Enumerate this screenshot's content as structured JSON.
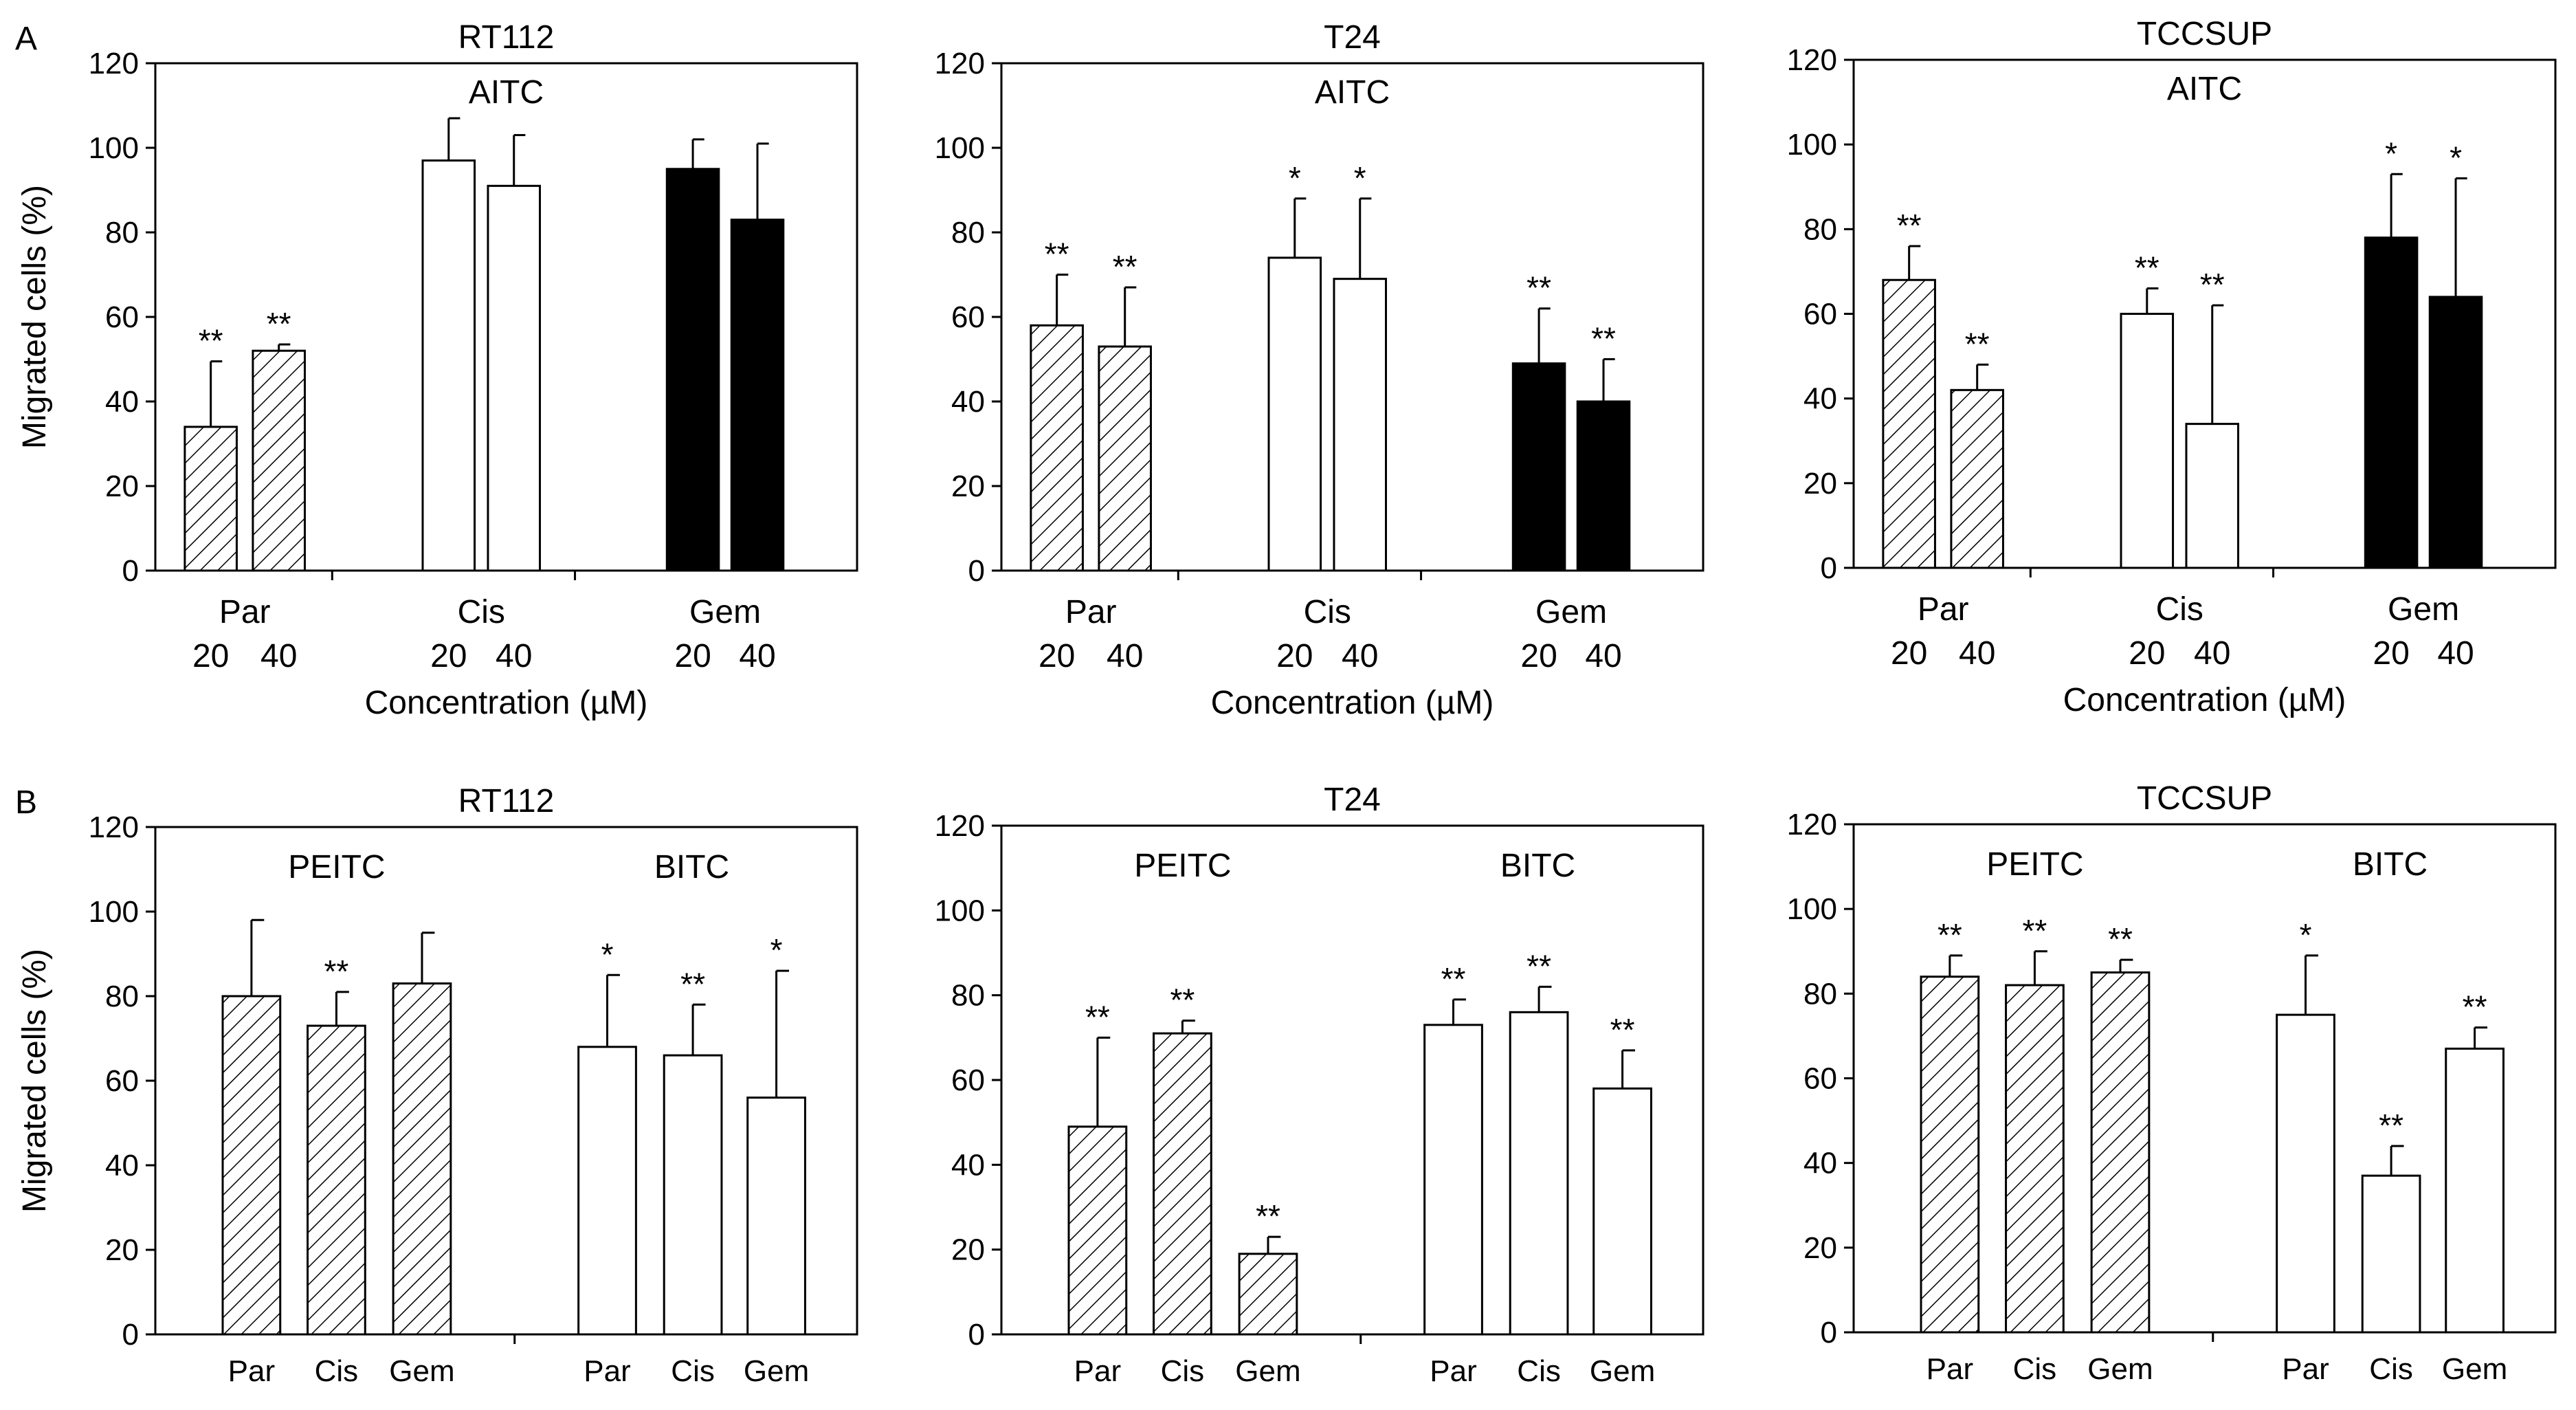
{
  "figure": {
    "panel_labels": [
      "A",
      "B"
    ]
  },
  "colors": {
    "hatched": "#ffffff",
    "open": "#ffffff",
    "solid": "#000000",
    "stroke": "#000000"
  },
  "chart_data": [
    {
      "type": "bar",
      "id": "A-RT112",
      "panel_label": "A",
      "title": "RT112",
      "group_label": "AITC",
      "ylabel": "Migrated cells (%)",
      "xlabel": "Concentration (µM)",
      "yticks": [
        0,
        20,
        40,
        60,
        80,
        100,
        120
      ],
      "ylim": [
        0,
        120
      ],
      "groups": [
        {
          "name": "Par",
          "style": "hatched",
          "bars": [
            {
              "sub": "20",
              "value": 34,
              "err": 15.5,
              "sig": "**"
            },
            {
              "sub": "40",
              "value": 52,
              "err": 1.5,
              "sig": "**"
            }
          ]
        },
        {
          "name": "Cis",
          "style": "open",
          "bars": [
            {
              "sub": "20",
              "value": 97,
              "err": 10,
              "sig": ""
            },
            {
              "sub": "40",
              "value": 91,
              "err": 12,
              "sig": ""
            }
          ]
        },
        {
          "name": "Gem",
          "style": "solid",
          "bars": [
            {
              "sub": "20",
              "value": 95,
              "err": 7,
              "sig": ""
            },
            {
              "sub": "40",
              "value": 83,
              "err": 18,
              "sig": ""
            }
          ]
        }
      ]
    },
    {
      "type": "bar",
      "id": "A-T24",
      "title": "T24",
      "group_label": "AITC",
      "xlabel": "Concentration (µM)",
      "yticks": [
        0,
        20,
        40,
        60,
        80,
        100,
        120
      ],
      "ylim": [
        0,
        120
      ],
      "groups": [
        {
          "name": "Par",
          "style": "hatched",
          "bars": [
            {
              "sub": "20",
              "value": 58,
              "err": 12,
              "sig": "**"
            },
            {
              "sub": "40",
              "value": 53,
              "err": 14,
              "sig": "**"
            }
          ]
        },
        {
          "name": "Cis",
          "style": "open",
          "bars": [
            {
              "sub": "20",
              "value": 74,
              "err": 14,
              "sig": "*"
            },
            {
              "sub": "40",
              "value": 69,
              "err": 19,
              "sig": "*"
            }
          ]
        },
        {
          "name": "Gem",
          "style": "solid",
          "bars": [
            {
              "sub": "20",
              "value": 49,
              "err": 13,
              "sig": "**"
            },
            {
              "sub": "40",
              "value": 40,
              "err": 10,
              "sig": "**"
            }
          ]
        }
      ]
    },
    {
      "type": "bar",
      "id": "A-TCCSUP",
      "title": "TCCSUP",
      "group_label": "AITC",
      "xlabel": "Concentration (µM)",
      "yticks": [
        0,
        20,
        40,
        60,
        80,
        100,
        120
      ],
      "ylim": [
        0,
        120
      ],
      "groups": [
        {
          "name": "Par",
          "style": "hatched",
          "bars": [
            {
              "sub": "20",
              "value": 68,
              "err": 8,
              "sig": "**"
            },
            {
              "sub": "40",
              "value": 42,
              "err": 6,
              "sig": "**"
            }
          ]
        },
        {
          "name": "Cis",
          "style": "open",
          "bars": [
            {
              "sub": "20",
              "value": 60,
              "err": 6,
              "sig": "**"
            },
            {
              "sub": "40",
              "value": 34,
              "err": 28,
              "sig": "**"
            }
          ]
        },
        {
          "name": "Gem",
          "style": "solid",
          "bars": [
            {
              "sub": "20",
              "value": 78,
              "err": 15,
              "sig": "*"
            },
            {
              "sub": "40",
              "value": 64,
              "err": 28,
              "sig": "*"
            }
          ]
        }
      ]
    },
    {
      "type": "bar",
      "id": "B-RT112",
      "panel_label": "B",
      "title": "RT112",
      "ylabel": "Migrated cells (%)",
      "yticks": [
        0,
        20,
        40,
        60,
        80,
        100,
        120
      ],
      "ylim": [
        0,
        120
      ],
      "groups": [
        {
          "name": "PEITC",
          "style": "hatched",
          "bars": [
            {
              "sub": "Par",
              "value": 80,
              "err": 18,
              "sig": ""
            },
            {
              "sub": "Cis",
              "value": 73,
              "err": 8,
              "sig": "**"
            },
            {
              "sub": "Gem",
              "value": 83,
              "err": 12,
              "sig": ""
            }
          ]
        },
        {
          "name": "BITC",
          "style": "open",
          "bars": [
            {
              "sub": "Par",
              "value": 68,
              "err": 17,
              "sig": "*"
            },
            {
              "sub": "Cis",
              "value": 66,
              "err": 12,
              "sig": "**"
            },
            {
              "sub": "Gem",
              "value": 56,
              "err": 30,
              "sig": "*"
            }
          ]
        }
      ]
    },
    {
      "type": "bar",
      "id": "B-T24",
      "title": "T24",
      "yticks": [
        0,
        20,
        40,
        60,
        80,
        100,
        120
      ],
      "ylim": [
        0,
        120
      ],
      "groups": [
        {
          "name": "PEITC",
          "style": "hatched",
          "bars": [
            {
              "sub": "Par",
              "value": 49,
              "err": 21,
              "sig": "**"
            },
            {
              "sub": "Cis",
              "value": 71,
              "err": 3,
              "sig": "**"
            },
            {
              "sub": "Gem",
              "value": 19,
              "err": 4,
              "sig": "**"
            }
          ]
        },
        {
          "name": "BITC",
          "style": "open",
          "bars": [
            {
              "sub": "Par",
              "value": 73,
              "err": 6,
              "sig": "**"
            },
            {
              "sub": "Cis",
              "value": 76,
              "err": 6,
              "sig": "**"
            },
            {
              "sub": "Gem",
              "value": 58,
              "err": 9,
              "sig": "**"
            }
          ]
        }
      ]
    },
    {
      "type": "bar",
      "id": "B-TCCSUP",
      "title": "TCCSUP",
      "yticks": [
        0,
        20,
        40,
        60,
        80,
        100,
        120
      ],
      "ylim": [
        0,
        120
      ],
      "groups": [
        {
          "name": "PEITC",
          "style": "hatched",
          "bars": [
            {
              "sub": "Par",
              "value": 84,
              "err": 5,
              "sig": "**"
            },
            {
              "sub": "Cis",
              "value": 82,
              "err": 8,
              "sig": "**"
            },
            {
              "sub": "Gem",
              "value": 85,
              "err": 3,
              "sig": "**"
            }
          ]
        },
        {
          "name": "BITC",
          "style": "open",
          "bars": [
            {
              "sub": "Par",
              "value": 75,
              "err": 14,
              "sig": "*"
            },
            {
              "sub": "Cis",
              "value": 37,
              "err": 7,
              "sig": "**"
            },
            {
              "sub": "Gem",
              "value": 67,
              "err": 5,
              "sig": "**"
            }
          ]
        }
      ]
    }
  ]
}
